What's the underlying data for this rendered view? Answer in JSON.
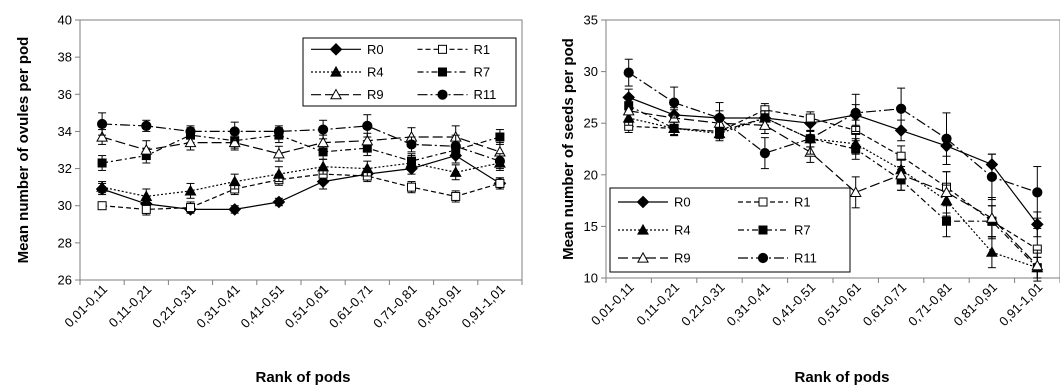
{
  "chart_data": [
    {
      "type": "line",
      "ylabel": "Mean number of ovules per pod",
      "xlabel": "Rank of pods",
      "ylim": [
        26,
        40
      ],
      "yticks": [
        26,
        28,
        30,
        32,
        34,
        36,
        38,
        40
      ],
      "grid": false,
      "legend_position": "top-right",
      "categories": [
        "0,01-0,11",
        "0,11-0,21",
        "0,21-0,31",
        "0,31-0,41",
        "0,41-0,51",
        "0,51-0,61",
        "0,61-0,71",
        "0,71-0,81",
        "0,81-0,91",
        "0,91-1,01"
      ],
      "series": [
        {
          "name": "R0",
          "marker": "diamond-filled",
          "dash": "solid",
          "values": [
            30.9,
            30.1,
            29.8,
            29.8,
            30.2,
            31.3,
            31.7,
            32.0,
            32.7,
            31.2
          ],
          "errors": [
            0.3,
            0.3,
            0.2,
            0.2,
            0.2,
            0.4,
            0.3,
            0.3,
            0.4,
            0.3
          ]
        },
        {
          "name": "R1",
          "marker": "square-open",
          "dash": "dash",
          "values": [
            30.0,
            29.8,
            29.9,
            30.9,
            31.4,
            31.7,
            31.6,
            31.0,
            30.5,
            31.2
          ],
          "errors": [
            0.2,
            0.3,
            0.3,
            0.3,
            0.3,
            0.3,
            0.3,
            0.3,
            0.3,
            0.3
          ]
        },
        {
          "name": "R4",
          "marker": "triangle-filled",
          "dash": "dot",
          "values": [
            31.0,
            30.5,
            30.8,
            31.3,
            31.7,
            32.1,
            32.0,
            32.3,
            31.8,
            32.3
          ],
          "errors": [
            0.3,
            0.4,
            0.4,
            0.4,
            0.4,
            0.4,
            0.4,
            0.4,
            0.4,
            0.4
          ]
        },
        {
          "name": "R7",
          "marker": "square-filled",
          "dash": "dashdot",
          "values": [
            32.3,
            32.7,
            33.8,
            33.5,
            33.8,
            32.9,
            33.1,
            32.4,
            33.0,
            33.7
          ],
          "errors": [
            0.4,
            0.4,
            0.4,
            0.4,
            0.4,
            0.4,
            0.4,
            0.4,
            0.4,
            0.4
          ]
        },
        {
          "name": "R9",
          "marker": "triangle-open",
          "dash": "longdash",
          "values": [
            33.7,
            33.0,
            33.4,
            33.4,
            32.8,
            33.4,
            33.5,
            33.7,
            33.7,
            32.9
          ],
          "errors": [
            0.4,
            0.5,
            0.4,
            0.4,
            0.4,
            0.4,
            0.4,
            0.5,
            0.6,
            0.5
          ]
        },
        {
          "name": "R11",
          "marker": "circle-filled",
          "dash": "longdashdot",
          "values": [
            34.4,
            34.3,
            34.0,
            34.0,
            34.0,
            34.1,
            34.3,
            33.3,
            33.2,
            32.4
          ],
          "errors": [
            0.6,
            0.3,
            0.3,
            0.5,
            0.3,
            0.5,
            0.6,
            0.4,
            0.6,
            0.4
          ]
        }
      ]
    },
    {
      "type": "line",
      "ylabel": "Mean number of seeds per pod",
      "xlabel": "Rank of pods",
      "ylim": [
        10,
        35
      ],
      "yticks": [
        10,
        15,
        20,
        25,
        30,
        35
      ],
      "grid": false,
      "legend_position": "bottom-left",
      "categories": [
        "0,01-0,11",
        "0,11-0,21",
        "0,21-0,31",
        "0,31-0,41",
        "0,41-0,51",
        "0,51-0,61",
        "0,61-0,71",
        "0,71-0,81",
        "0,81-0,91",
        "0,91-1,01"
      ],
      "series": [
        {
          "name": "R0",
          "marker": "diamond-filled",
          "dash": "solid",
          "values": [
            27.5,
            25.8,
            25.5,
            25.5,
            25.0,
            25.8,
            24.3,
            22.8,
            21.0,
            15.2
          ],
          "errors": [
            0.8,
            0.7,
            0.7,
            0.7,
            0.8,
            1.0,
            1.0,
            1.0,
            1.0,
            1.2
          ]
        },
        {
          "name": "R1",
          "marker": "square-open",
          "dash": "dash",
          "values": [
            24.7,
            24.5,
            24.2,
            26.3,
            25.5,
            24.3,
            21.8,
            18.8,
            15.5,
            12.8
          ],
          "errors": [
            0.6,
            0.6,
            0.6,
            0.6,
            0.6,
            1.0,
            1.0,
            1.5,
            1.5,
            2.0
          ]
        },
        {
          "name": "R4",
          "marker": "triangle-filled",
          "dash": "dot",
          "values": [
            25.5,
            24.5,
            24.0,
            25.5,
            23.5,
            23.0,
            20.5,
            17.5,
            12.5,
            11.0
          ],
          "errors": [
            0.7,
            0.7,
            0.7,
            0.7,
            0.8,
            1.0,
            1.0,
            1.5,
            1.5,
            1.0
          ]
        },
        {
          "name": "R7",
          "marker": "square-filled",
          "dash": "dashdot",
          "values": [
            26.7,
            24.5,
            24.2,
            25.5,
            23.5,
            22.5,
            19.5,
            15.5,
            15.5,
            11.0
          ],
          "errors": [
            0.7,
            0.7,
            0.7,
            0.7,
            0.8,
            1.0,
            1.0,
            1.5,
            1.5,
            1.0
          ]
        },
        {
          "name": "R9",
          "marker": "triangle-open",
          "dash": "longdash",
          "values": [
            26.2,
            25.5,
            25.0,
            24.8,
            22.2,
            18.3,
            20.0,
            18.3,
            15.8,
            11.2
          ],
          "errors": [
            0.8,
            0.8,
            0.8,
            0.8,
            1.0,
            1.5,
            1.5,
            2.0,
            2.0,
            1.5
          ]
        },
        {
          "name": "R11",
          "marker": "circle-filled",
          "dash": "longdashdot",
          "values": [
            29.9,
            27.0,
            25.5,
            22.1,
            23.5,
            26.0,
            26.4,
            23.5,
            19.8,
            18.3
          ],
          "errors": [
            1.3,
            1.5,
            1.5,
            1.5,
            1.5,
            1.8,
            2.0,
            2.5,
            2.2,
            2.5
          ]
        }
      ]
    }
  ]
}
